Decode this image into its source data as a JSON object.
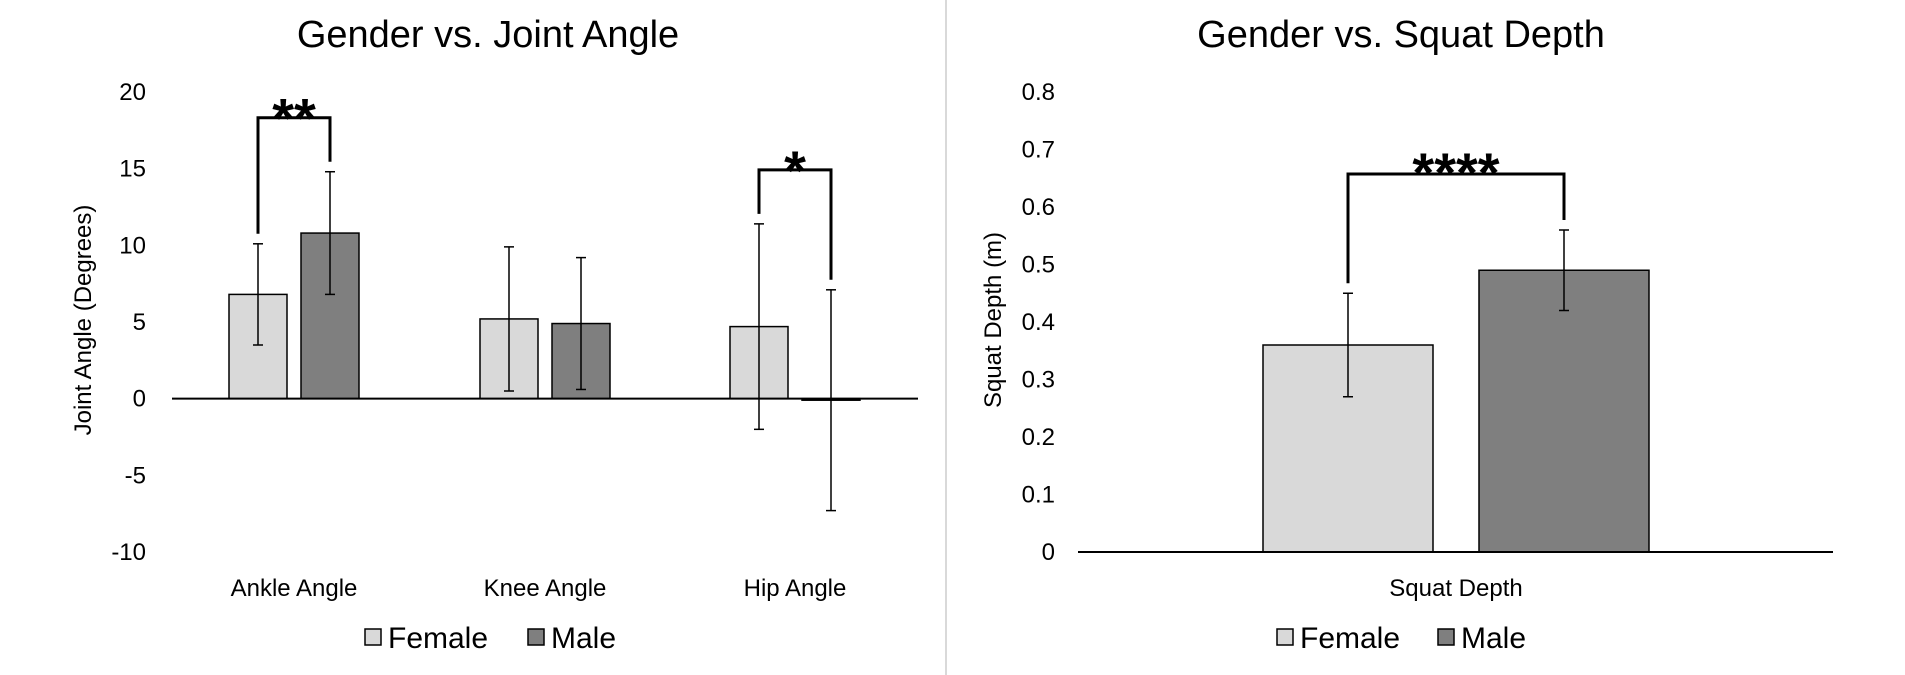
{
  "chart_data": [
    {
      "type": "bar",
      "title": "Gender vs. Joint Angle",
      "xlabel": "",
      "ylabel": "Joint Angle (Degrees)",
      "categories": [
        "Ankle Angle",
        "Knee Angle",
        "Hip Angle"
      ],
      "ylim": [
        -10,
        20
      ],
      "yticks": [
        -10,
        -5,
        0,
        5,
        10,
        15,
        20
      ],
      "series": [
        {
          "name": "Female",
          "color": "#d9d9d9",
          "values": [
            6.8,
            5.2,
            4.7
          ],
          "errors": [
            3.3,
            4.7,
            6.7
          ]
        },
        {
          "name": "Male",
          "color": "#7f7f7f",
          "values": [
            10.8,
            4.9,
            -0.1
          ],
          "errors": [
            4.0,
            4.3,
            7.2
          ]
        }
      ],
      "significance": [
        {
          "category": "Ankle Angle",
          "label": "**"
        },
        {
          "category": "Hip Angle",
          "label": "*"
        }
      ],
      "legend": "bottom",
      "grid": false
    },
    {
      "type": "bar",
      "title": "Gender vs. Squat Depth",
      "xlabel": "",
      "ylabel": "Squat Depth (m)",
      "categories": [
        "Squat Depth"
      ],
      "ylim": [
        0,
        0.8
      ],
      "yticks": [
        "0",
        "0.1",
        "0.2",
        "0.3",
        "0.4",
        "0.5",
        "0.6",
        "0.7",
        "0.8"
      ],
      "series": [
        {
          "name": "Female",
          "color": "#d9d9d9",
          "values": [
            0.36
          ],
          "errors": [
            0.09
          ]
        },
        {
          "name": "Male",
          "color": "#7f7f7f",
          "values": [
            0.49
          ],
          "errors": [
            0.07
          ]
        }
      ],
      "significance": [
        {
          "category": "Squat Depth",
          "label": "****"
        }
      ],
      "legend": "bottom",
      "grid": false
    }
  ]
}
